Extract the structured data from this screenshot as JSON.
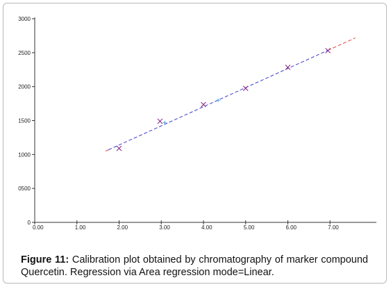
{
  "chart_data": {
    "type": "scatter",
    "title": "",
    "xlabel": "",
    "ylabel": "",
    "xlim": [
      0,
      8.1
    ],
    "ylim": [
      0,
      3000
    ],
    "x_ticks": [
      0,
      1,
      2,
      3,
      4,
      5,
      6,
      7
    ],
    "x_tick_labels": [
      "0.00",
      "1.00",
      "2.00",
      "3.00",
      "4.00",
      "5.00",
      "6.00",
      "7.00"
    ],
    "y_ticks": [
      0,
      500,
      1000,
      1500,
      2000,
      2500,
      3000
    ],
    "y_tick_labels": [
      "0",
      "0500",
      "1000",
      "1500",
      "2000",
      "2500",
      "3000"
    ],
    "grid": false,
    "series": [
      {
        "marker": "x",
        "color": "#8b2a8b",
        "x": [
          2.0,
          2.97,
          4.0,
          5.0,
          6.0,
          6.95
        ],
        "y": [
          1090,
          1490,
          1735,
          1975,
          2285,
          2530
        ]
      },
      {
        "marker": "small-cross",
        "color": "#4aa8e0",
        "x": [
          3.08,
          4.35
        ],
        "y": [
          1470,
          1800
        ]
      }
    ],
    "regression_lines": [
      {
        "color": "#3b3bd0",
        "style": "dashed",
        "x": [
          1.75,
          6.95
        ],
        "y": [
          1070,
          2535
        ]
      },
      {
        "color": "#e04040",
        "style": "dashed",
        "x": [
          6.95,
          7.6
        ],
        "y": [
          2535,
          2718
        ]
      },
      {
        "color": "#e04040",
        "style": "dashed",
        "x": [
          1.68,
          1.75
        ],
        "y": [
          1050,
          1070
        ]
      }
    ]
  },
  "caption": {
    "label": "Figure 11:",
    "text": "Calibration plot obtained by chromatography of marker compound Quercetin. Regression via Area regression mode=Linear."
  }
}
